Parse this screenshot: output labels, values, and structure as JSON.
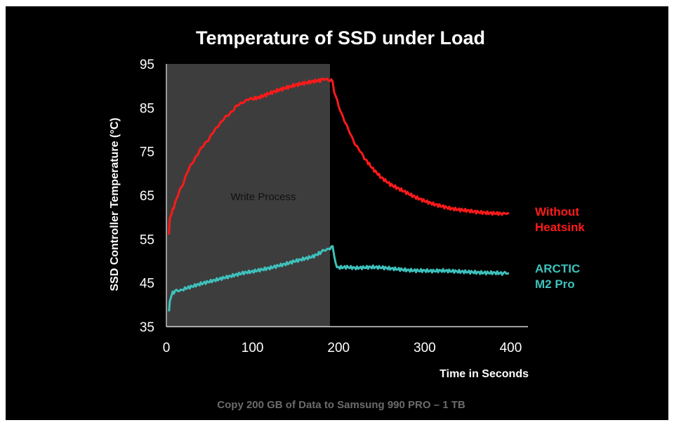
{
  "chart_data": {
    "type": "line",
    "title": "Temperature of SSD under Load",
    "xlabel": "Time in Seconds",
    "ylabel": "SSD Controller Temperature (°C)",
    "caption": "Copy 200 GB of Data to Samsung 990 PRO  – 1 TB",
    "xlim": [
      0,
      420
    ],
    "ylim": [
      35,
      95
    ],
    "xticks": [
      0,
      100,
      200,
      300,
      400
    ],
    "yticks": [
      35,
      45,
      55,
      65,
      75,
      85,
      95
    ],
    "grid": false,
    "legend_position": "right",
    "region": {
      "label": "Write Process",
      "x_start": 0,
      "x_end": 190,
      "color": "#3d3d3d"
    },
    "series": [
      {
        "name": "Without Heatsink",
        "legend_lines": [
          "Without",
          "Heatsink"
        ],
        "color": "#ff1a1a",
        "x": [
          3,
          4,
          6,
          10,
          15,
          20,
          25,
          30,
          35,
          40,
          45,
          50,
          55,
          60,
          65,
          70,
          75,
          80,
          85,
          90,
          95,
          100,
          110,
          120,
          130,
          140,
          150,
          160,
          170,
          180,
          185,
          190,
          193,
          195,
          200,
          205,
          210,
          215,
          220,
          225,
          230,
          240,
          250,
          260,
          270,
          280,
          290,
          300,
          310,
          320,
          330,
          340,
          350,
          360,
          370,
          380,
          390,
          398
        ],
        "values": [
          56,
          60,
          61,
          63,
          66,
          68,
          70.5,
          72.5,
          74,
          75.5,
          77,
          78,
          79.5,
          81,
          82,
          83,
          84,
          85,
          85.8,
          86.5,
          86.8,
          87,
          87.5,
          88.3,
          89,
          89.6,
          90.2,
          90.6,
          91,
          91.3,
          91.5,
          91.4,
          91,
          88.5,
          85.5,
          83,
          80.5,
          78.5,
          76.5,
          75,
          73.5,
          71,
          69,
          67.5,
          66.5,
          65.5,
          64.5,
          63.7,
          63,
          62.5,
          62,
          61.7,
          61.5,
          61.2,
          61,
          60.9,
          60.8,
          60.8
        ]
      },
      {
        "name": "ARCTIC M2 Pro",
        "legend_lines": [
          "ARCTIC",
          "M2 Pro"
        ],
        "color": "#3ec1bc",
        "x": [
          3,
          4,
          6,
          10,
          15,
          20,
          30,
          40,
          50,
          60,
          70,
          80,
          90,
          100,
          110,
          120,
          130,
          140,
          150,
          160,
          170,
          180,
          185,
          190,
          193,
          195,
          198,
          200,
          210,
          220,
          230,
          240,
          250,
          260,
          270,
          280,
          290,
          300,
          310,
          320,
          330,
          340,
          350,
          360,
          370,
          380,
          390,
          398
        ],
        "values": [
          38.5,
          41,
          42.5,
          43,
          43.3,
          43.6,
          44.2,
          44.8,
          45.3,
          45.8,
          46.3,
          46.8,
          47.3,
          47.6,
          48,
          48.4,
          48.9,
          49.4,
          50,
          50.5,
          51,
          52,
          52.5,
          53,
          53.2,
          51,
          48.5,
          48.5,
          48.6,
          48.4,
          48.5,
          48.6,
          48.5,
          48.3,
          48.1,
          47.9,
          47.8,
          47.8,
          47.7,
          47.8,
          47.7,
          47.6,
          47.5,
          47.4,
          47.3,
          47.3,
          47.2,
          47.2
        ]
      }
    ]
  }
}
